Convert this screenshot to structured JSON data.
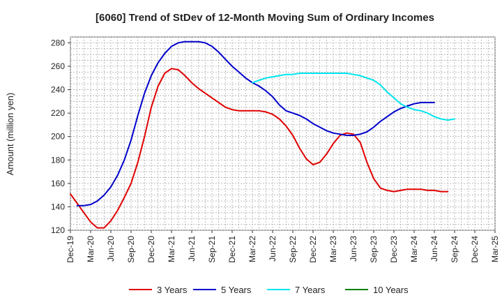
{
  "chart_data": {
    "type": "line",
    "title": "[6060]  Trend of StDev of 12-Month Moving Sum of Ordinary Incomes",
    "xlabel": "",
    "ylabel": "Amount (million yen)",
    "ylim": [
      120,
      285
    ],
    "yticks": [
      120,
      140,
      160,
      180,
      200,
      220,
      240,
      260,
      280
    ],
    "x_ticks": [
      "Dec-19",
      "Mar-20",
      "Jun-20",
      "Sep-20",
      "Dec-20",
      "Mar-21",
      "Jun-21",
      "Sep-21",
      "Dec-21",
      "Mar-22",
      "Jun-22",
      "Sep-22",
      "Dec-22",
      "Mar-23",
      "Jun-23",
      "Sep-23",
      "Dec-23",
      "Mar-24",
      "Jun-24",
      "Sep-24",
      "Dec-24",
      "Mar-25"
    ],
    "grid": true,
    "legend_position": "bottom",
    "series": [
      {
        "name": "3 Years",
        "color": "#e00000",
        "start_month": 0,
        "values": [
          151,
          143,
          135,
          127,
          122,
          122,
          128,
          137,
          148,
          160,
          178,
          200,
          225,
          243,
          254,
          258,
          257,
          252,
          246,
          241,
          237,
          233,
          229,
          225,
          223,
          222,
          222,
          222,
          222,
          221,
          219,
          215,
          209,
          201,
          190,
          181,
          176,
          178,
          185,
          194,
          201,
          203,
          202,
          195,
          178,
          164,
          156,
          154,
          153,
          154,
          155,
          155,
          155,
          154,
          154,
          153,
          153
        ]
      },
      {
        "name": "5 Years",
        "color": "#0000cc",
        "start_month": 1,
        "values": [
          141,
          141,
          142,
          145,
          150,
          157,
          167,
          180,
          197,
          218,
          237,
          252,
          263,
          271,
          277,
          280,
          281,
          281,
          281,
          280,
          277,
          272,
          266,
          260,
          255,
          250,
          246,
          243,
          239,
          234,
          227,
          222,
          220,
          218,
          215,
          211,
          208,
          205,
          203,
          202,
          201,
          201,
          202,
          204,
          208,
          213,
          217,
          221,
          224,
          226,
          228,
          229,
          229,
          229
        ]
      },
      {
        "name": "7 Years",
        "color": "#00e5ee",
        "start_month": 27,
        "values": [
          246,
          248,
          250,
          251,
          252,
          253,
          253,
          254,
          254,
          254,
          254,
          254,
          254,
          254,
          254,
          253,
          252,
          250,
          248,
          244,
          238,
          233,
          228,
          225,
          223,
          222,
          220,
          217,
          215,
          214,
          215
        ]
      },
      {
        "name": "10 Years",
        "color": "#008000",
        "start_month": 0,
        "values": []
      }
    ]
  }
}
